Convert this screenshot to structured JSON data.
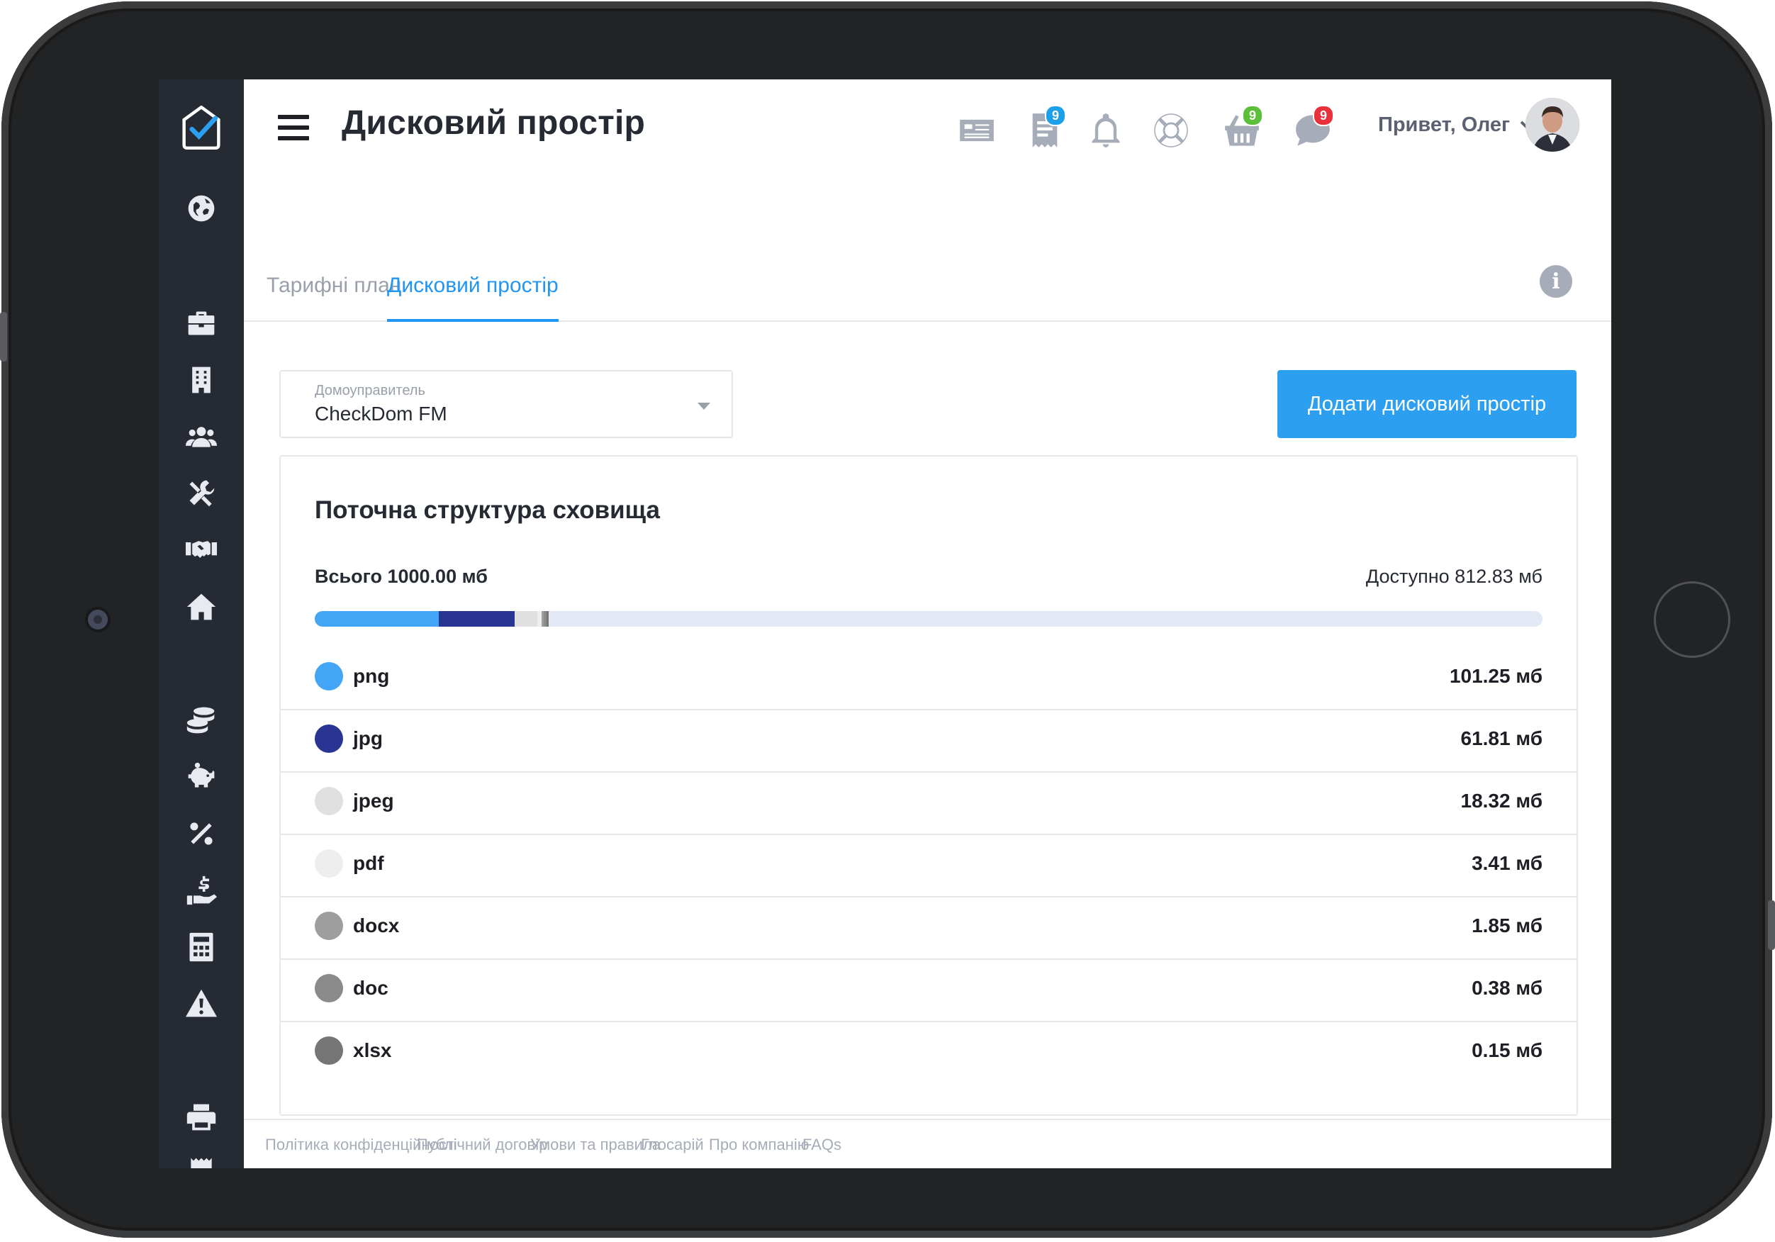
{
  "header": {
    "title": "Дисковий простір",
    "greeting": "Привет, Олег",
    "icons": [
      {
        "name": "newspaper-icon",
        "badge": null
      },
      {
        "name": "receipt-icon",
        "badge": "9",
        "badge_color": "#1ea0e8"
      },
      {
        "name": "bell-icon",
        "badge": null
      },
      {
        "name": "lifebuoy-icon",
        "badge": null
      },
      {
        "name": "basket-icon",
        "badge": "9",
        "badge_color": "#5bbf3a"
      },
      {
        "name": "chat-icon",
        "badge": "9",
        "badge_color": "#e8313b"
      }
    ]
  },
  "tabs": [
    {
      "label": "Тарифні плани",
      "active": false
    },
    {
      "label": "Дисковий простір",
      "active": true
    }
  ],
  "selector": {
    "label": "Домоуправитель",
    "value": "CheckDom FM"
  },
  "add_button": "Додати дисковий простір",
  "storage": {
    "title": "Поточна структура сховища",
    "total": "Всього 1000.00 мб",
    "available": "Доступно 812.83 мб",
    "items": [
      {
        "ext": "png",
        "size": "101.25 мб",
        "value": 101.25,
        "color": "#42a5f5"
      },
      {
        "ext": "jpg",
        "size": "61.81 мб",
        "value": 61.81,
        "color": "#283593"
      },
      {
        "ext": "jpeg",
        "size": "18.32 мб",
        "value": 18.32,
        "color": "#e0e0e0"
      },
      {
        "ext": "pdf",
        "size": "3.41 мб",
        "value": 3.41,
        "color": "#eeeeee"
      },
      {
        "ext": "docx",
        "size": "1.85 мб",
        "value": 1.85,
        "color": "#9e9e9e"
      },
      {
        "ext": "doc",
        "size": "0.38 мб",
        "value": 0.38,
        "color": "#8a8a8a"
      },
      {
        "ext": "xlsx",
        "size": "0.15 мб",
        "value": 0.15,
        "color": "#757575"
      }
    ],
    "total_value": 1000
  },
  "sidebar_icons": [
    "logo-check-icon",
    "globe-icon",
    "briefcase-icon",
    "building-icon",
    "users-icon",
    "tools-icon",
    "handshake-icon",
    "home-icon",
    "coins-icon",
    "piggy-bank-icon",
    "percent-icon",
    "hand-dollar-icon",
    "calculator-icon",
    "warning-icon",
    "printer-icon",
    "receipt-bottom-icon"
  ],
  "footer": [
    "Політика конфіденційності",
    "Публічний договір",
    "Умови та правила",
    "Глосарій",
    "Про компанію",
    "FAQs"
  ]
}
